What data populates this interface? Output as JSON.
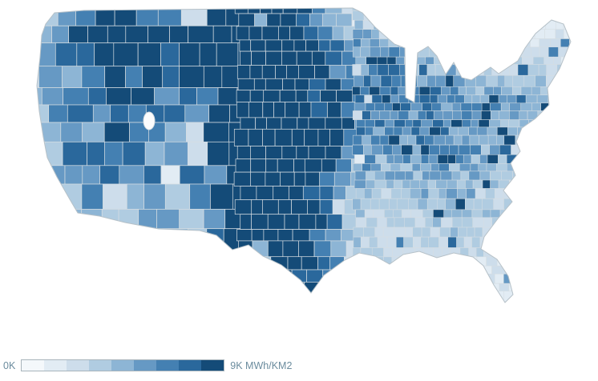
{
  "page": {
    "background": "#ffffff"
  },
  "legend": {
    "min_label": "0K",
    "max_label": "9K MWh/KM2",
    "text_color": "#6b8c9e"
  },
  "chart_data": {
    "type": "choropleth",
    "title": "",
    "geography": "United States counties",
    "metric_units": "MWh/KM2",
    "value_range": [
      0,
      9000
    ],
    "legend": {
      "min": "0K",
      "max": "9K",
      "units": "MWh/KM2"
    },
    "color_scale": [
      "#f4f8fb",
      "#e2ecf4",
      "#cdddeb",
      "#b0cce1",
      "#8db5d5",
      "#6699c4",
      "#4480b2",
      "#2a689c",
      "#144b78"
    ],
    "county_border_color": "#d6dde2",
    "coast_border_color": "#b6c1c8",
    "pattern_summary": "Highest values (dark blue) form a north-south band across the Great Plains from the Dakotas through Nebraska, Kansas, Oklahoma and west Texas; moderate values across the Mountain West and upper Midwest; low values along the Southeast, East coast and Pacific coast with scattered high-value metro counties.",
    "regional_intensity": {
      "pacific_coast": 0.3,
      "mountain_west": 0.45,
      "northern_rockies": 0.55,
      "eastern_washington": 0.5,
      "great_plains": 0.95,
      "west_texas": 0.85,
      "midwest": 0.5,
      "southeast": 0.2,
      "northeast": 0.28,
      "appalachia": 0.18
    }
  }
}
